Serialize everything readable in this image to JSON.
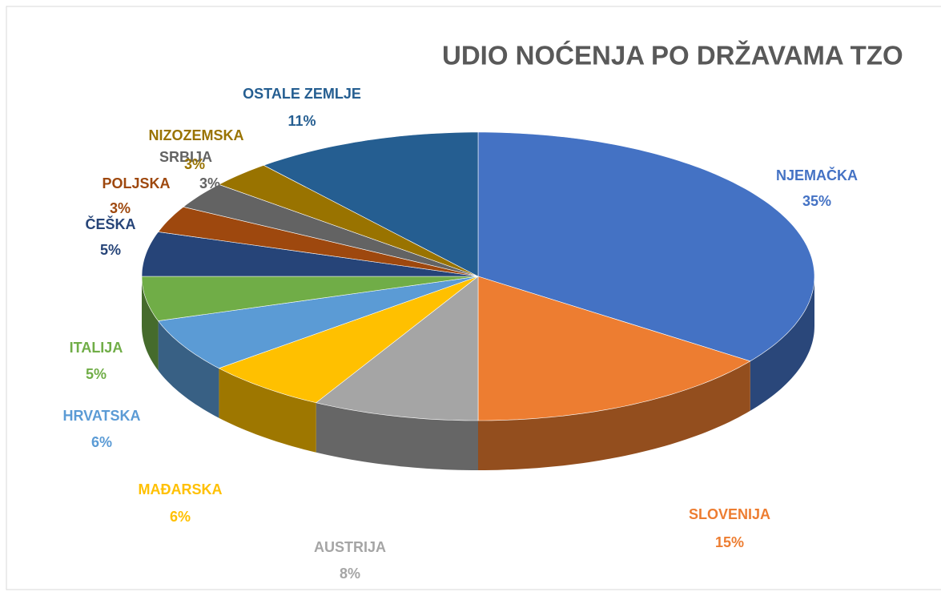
{
  "chart_data": {
    "type": "pie",
    "title": "UDIO NOĆENJA PO DRŽAVAMA TZO",
    "categories": [
      "NJEMAČKA",
      "SLOVENIJA",
      "AUSTRIJA",
      "MAĐARSKA",
      "HRVATSKA",
      "ITALIJA",
      "ČEŠKA",
      "POLJSKA",
      "SRBIJA",
      "NIZOZEMSKA",
      "OSTALE ZEMLJE"
    ],
    "values": [
      35,
      15,
      8,
      6,
      6,
      5,
      5,
      3,
      3,
      3,
      11
    ],
    "value_labels": [
      "35%",
      "15%",
      "8%",
      "6%",
      "6%",
      "5%",
      "5%",
      "3%",
      "3%",
      "3%",
      "11%"
    ],
    "colors": [
      "#4472c4",
      "#ed7d31",
      "#a5a5a5",
      "#ffc000",
      "#5b9bd5",
      "#70ad47",
      "#264478",
      "#9e480e",
      "#636363",
      "#997300",
      "#255e91"
    ]
  }
}
